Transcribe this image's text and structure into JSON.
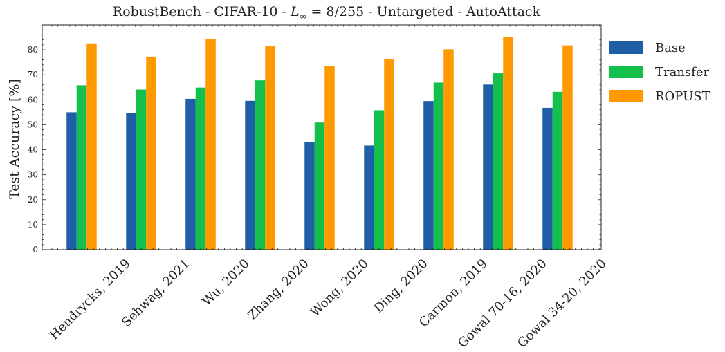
{
  "chart_data": {
    "type": "bar",
    "title": "RobustBench - CIFAR-10 - L∞ = 8/255 - Untargeted - AutoAttack",
    "title_parts": {
      "prefix": "RobustBench - CIFAR-10 - ",
      "var": "L",
      "sub": "∞",
      "suffix": " = 8/255 - Untargeted - AutoAttack"
    },
    "xlabel": "",
    "ylabel": "Test Accuracy [%]",
    "ylim": [
      0,
      90
    ],
    "yticks": [
      0,
      10,
      20,
      30,
      40,
      50,
      60,
      70,
      80
    ],
    "categories": [
      "Hendrycks, 2019",
      "Sehwag, 2021",
      "Wu, 2020",
      "Zhang, 2020",
      "Wong, 2020",
      "Ding, 2020",
      "Carmon, 2019",
      "Gowal 70-16, 2020",
      "Gowal 34-20, 2020"
    ],
    "series": [
      {
        "name": "Base",
        "color": "#1f5fa8",
        "values": [
          55.0,
          54.6,
          60.4,
          59.6,
          43.2,
          41.7,
          59.5,
          66.1,
          56.8
        ]
      },
      {
        "name": "Transfer",
        "color": "#12c04b",
        "values": [
          65.8,
          64.1,
          64.9,
          67.8,
          50.9,
          55.8,
          66.9,
          70.6,
          63.2
        ]
      },
      {
        "name": "ROPUST",
        "color": "#ff9900",
        "values": [
          82.6,
          77.3,
          84.3,
          81.4,
          73.6,
          76.4,
          80.2,
          85.1,
          81.8
        ]
      }
    ],
    "legend_position": "right",
    "grid": false
  }
}
